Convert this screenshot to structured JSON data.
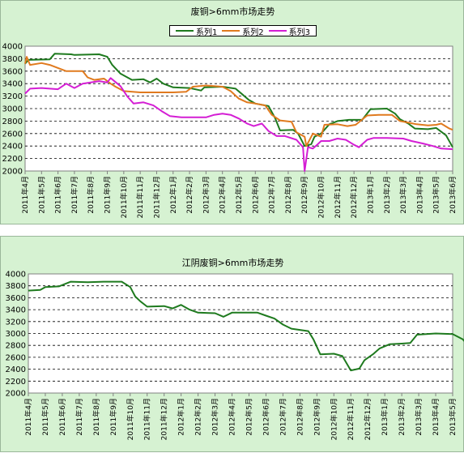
{
  "chart_data": [
    {
      "type": "line",
      "title": "废铜>6mm市场走势",
      "ylim": [
        2000,
        4000
      ],
      "yticks": [
        "2000",
        "2200",
        "2400",
        "2600",
        "2800",
        "3000",
        "3200",
        "3400",
        "3600",
        "3800",
        "4000"
      ],
      "categories": [
        "2011年4月",
        "2011年5月",
        "2011年6月",
        "2011年7月",
        "2011年8月",
        "2011年9月",
        "2011年10月",
        "2011年11月",
        "2011年12月",
        "2012年1月",
        "2012年2月",
        "2012年3月",
        "2012年4月",
        "2012年5月",
        "2012年6月",
        "2012年7月",
        "2012年8月",
        "2012年9月",
        "2012年10月",
        "2012年11月",
        "2012年12月",
        "2013年1月",
        "2013年2月",
        "2013年3月",
        "2013年4月",
        "2013年5月",
        "2013年6月"
      ],
      "legend_position": "top",
      "grid": "horizontal dashed",
      "series": [
        {
          "name": "系列1",
          "color": "#1e7a1e",
          "points": [
            [
              0,
              3720
            ],
            [
              0.2,
              3780
            ],
            [
              1.5,
              3790
            ],
            [
              1.8,
              3880
            ],
            [
              2.8,
              3870
            ],
            [
              3.0,
              3860
            ],
            [
              4.5,
              3870
            ],
            [
              5.0,
              3830
            ],
            [
              5.3,
              3700
            ],
            [
              5.8,
              3560
            ],
            [
              6.5,
              3460
            ],
            [
              7.2,
              3470
            ],
            [
              7.6,
              3420
            ],
            [
              8.0,
              3480
            ],
            [
              8.4,
              3400
            ],
            [
              9.0,
              3340
            ],
            [
              10.0,
              3330
            ],
            [
              10.7,
              3290
            ],
            [
              10.9,
              3340
            ],
            [
              12.0,
              3350
            ],
            [
              12.8,
              3320
            ],
            [
              13.2,
              3230
            ],
            [
              13.6,
              3140
            ],
            [
              14.0,
              3080
            ],
            [
              14.8,
              3040
            ],
            [
              15.2,
              2850
            ],
            [
              15.5,
              2650
            ],
            [
              16.3,
              2660
            ],
            [
              16.6,
              2600
            ],
            [
              17.0,
              2400
            ],
            [
              17.4,
              2430
            ],
            [
              17.6,
              2550
            ],
            [
              18.0,
              2600
            ],
            [
              18.5,
              2750
            ],
            [
              19.0,
              2800
            ],
            [
              19.7,
              2820
            ],
            [
              20.5,
              2820
            ],
            [
              21.0,
              2990
            ],
            [
              22.0,
              3000
            ],
            [
              22.5,
              2920
            ],
            [
              22.8,
              2830
            ],
            [
              23.3,
              2760
            ],
            [
              23.7,
              2680
            ],
            [
              24.5,
              2670
            ],
            [
              25.0,
              2690
            ],
            [
              25.6,
              2570
            ],
            [
              26.0,
              2380
            ]
          ]
        },
        {
          "name": "系列2",
          "color": "#e07a1e",
          "points": [
            [
              0,
              3720
            ],
            [
              0.1,
              3830
            ],
            [
              0.3,
              3700
            ],
            [
              1.0,
              3730
            ],
            [
              1.5,
              3700
            ],
            [
              2.5,
              3600
            ],
            [
              3.5,
              3600
            ],
            [
              3.8,
              3500
            ],
            [
              4.2,
              3460
            ],
            [
              4.8,
              3480
            ],
            [
              5.2,
              3400
            ],
            [
              5.5,
              3350
            ],
            [
              6.0,
              3280
            ],
            [
              7.0,
              3260
            ],
            [
              8.0,
              3260
            ],
            [
              9.0,
              3260
            ],
            [
              9.8,
              3270
            ],
            [
              10.2,
              3350
            ],
            [
              11.0,
              3370
            ],
            [
              12.0,
              3350
            ],
            [
              12.5,
              3280
            ],
            [
              13.0,
              3160
            ],
            [
              13.5,
              3100
            ],
            [
              14.0,
              3080
            ],
            [
              14.6,
              3050
            ],
            [
              15.0,
              2900
            ],
            [
              15.5,
              2810
            ],
            [
              16.2,
              2790
            ],
            [
              16.5,
              2620
            ],
            [
              17.0,
              2550
            ],
            [
              17.1,
              2400
            ],
            [
              17.5,
              2600
            ],
            [
              18.0,
              2550
            ],
            [
              18.2,
              2740
            ],
            [
              19.0,
              2750
            ],
            [
              19.6,
              2720
            ],
            [
              20.1,
              2740
            ],
            [
              20.8,
              2890
            ],
            [
              21.5,
              2900
            ],
            [
              22.3,
              2900
            ],
            [
              22.8,
              2800
            ],
            [
              23.2,
              2780
            ],
            [
              23.8,
              2750
            ],
            [
              24.5,
              2730
            ],
            [
              25.0,
              2740
            ],
            [
              25.3,
              2760
            ],
            [
              25.8,
              2680
            ],
            [
              26.0,
              2660
            ]
          ]
        },
        {
          "name": "系列3",
          "color": "#d41ed4",
          "points": [
            [
              0,
              3240
            ],
            [
              0.3,
              3320
            ],
            [
              1.0,
              3330
            ],
            [
              2.0,
              3310
            ],
            [
              2.5,
              3400
            ],
            [
              3.0,
              3330
            ],
            [
              3.5,
              3400
            ],
            [
              4.5,
              3440
            ],
            [
              5.0,
              3420
            ],
            [
              5.2,
              3490
            ],
            [
              5.8,
              3360
            ],
            [
              6.2,
              3200
            ],
            [
              6.6,
              3080
            ],
            [
              7.2,
              3100
            ],
            [
              7.8,
              3050
            ],
            [
              8.3,
              2960
            ],
            [
              8.8,
              2880
            ],
            [
              9.5,
              2860
            ],
            [
              11.0,
              2860
            ],
            [
              11.5,
              2900
            ],
            [
              12.0,
              2920
            ],
            [
              12.5,
              2900
            ],
            [
              13.0,
              2840
            ],
            [
              13.5,
              2760
            ],
            [
              13.9,
              2720
            ],
            [
              14.4,
              2760
            ],
            [
              14.8,
              2640
            ],
            [
              15.3,
              2560
            ],
            [
              15.8,
              2560
            ],
            [
              16.5,
              2500
            ],
            [
              16.9,
              2380
            ],
            [
              17.0,
              2000
            ],
            [
              17.2,
              2380
            ],
            [
              17.5,
              2360
            ],
            [
              17.8,
              2430
            ],
            [
              18.0,
              2480
            ],
            [
              18.5,
              2480
            ],
            [
              19.0,
              2520
            ],
            [
              19.5,
              2500
            ],
            [
              20.0,
              2420
            ],
            [
              20.3,
              2380
            ],
            [
              20.8,
              2500
            ],
            [
              21.2,
              2530
            ],
            [
              22.0,
              2530
            ],
            [
              23.0,
              2520
            ],
            [
              23.5,
              2480
            ],
            [
              24.2,
              2440
            ],
            [
              24.8,
              2400
            ],
            [
              25.3,
              2360
            ],
            [
              26.0,
              2350
            ]
          ]
        }
      ]
    },
    {
      "type": "line",
      "title": "江阴废铜>6mm市场走势",
      "ylim": [
        2000,
        4000
      ],
      "yticks": [
        "2000",
        "2200",
        "2400",
        "2600",
        "2800",
        "3000",
        "3200",
        "3400",
        "3600",
        "3800",
        "4000"
      ],
      "categories": [
        "2011年4月",
        "2011年5月",
        "2011年6月",
        "2011年7月",
        "2011年8月",
        "2011年9月",
        "2011年10月",
        "2011年11月",
        "2011年12月",
        "2012年1月",
        "2012年2月",
        "2012年3月",
        "2012年4月",
        "2012年5月",
        "2012年6月",
        "2012年7月",
        "2012年8月",
        "2012年9月",
        "2012年10月",
        "2012年11月",
        "2012年12月",
        "2013年1月",
        "2013年2月",
        "2013年3月",
        "2013年4月",
        "2013年5月"
      ],
      "grid": "horizontal dashed",
      "series": [
        {
          "color": "#1e7a1e",
          "points": [
            [
              0,
              3720
            ],
            [
              0.7,
              3730
            ],
            [
              1.0,
              3780
            ],
            [
              1.8,
              3790
            ],
            [
              2.5,
              3870
            ],
            [
              3.5,
              3860
            ],
            [
              4.5,
              3870
            ],
            [
              5.5,
              3870
            ],
            [
              6.0,
              3780
            ],
            [
              6.3,
              3620
            ],
            [
              6.6,
              3540
            ],
            [
              7.0,
              3450
            ],
            [
              8.0,
              3460
            ],
            [
              8.5,
              3420
            ],
            [
              9.0,
              3480
            ],
            [
              9.5,
              3400
            ],
            [
              10.0,
              3350
            ],
            [
              11.0,
              3340
            ],
            [
              11.5,
              3280
            ],
            [
              12.0,
              3350
            ],
            [
              13.5,
              3350
            ],
            [
              14.0,
              3300
            ],
            [
              14.5,
              3250
            ],
            [
              15.0,
              3150
            ],
            [
              15.5,
              3080
            ],
            [
              16.0,
              3060
            ],
            [
              16.5,
              3040
            ],
            [
              16.8,
              2900
            ],
            [
              17.2,
              2650
            ],
            [
              18.0,
              2660
            ],
            [
              18.5,
              2620
            ],
            [
              19.0,
              2380
            ],
            [
              19.5,
              2410
            ],
            [
              19.8,
              2550
            ],
            [
              20.3,
              2650
            ],
            [
              20.7,
              2750
            ],
            [
              21.3,
              2820
            ],
            [
              22.0,
              2830
            ],
            [
              22.5,
              2840
            ],
            [
              22.9,
              2980
            ],
            [
              24.0,
              3000
            ],
            [
              25.0,
              2990
            ],
            [
              25.6,
              2900
            ],
            [
              26.0,
              2770
            ],
            [
              26.4,
              2680
            ],
            [
              27.0,
              2670
            ],
            [
              27.5,
              2710
            ],
            [
              27.8,
              2660
            ]
          ]
        }
      ]
    }
  ]
}
